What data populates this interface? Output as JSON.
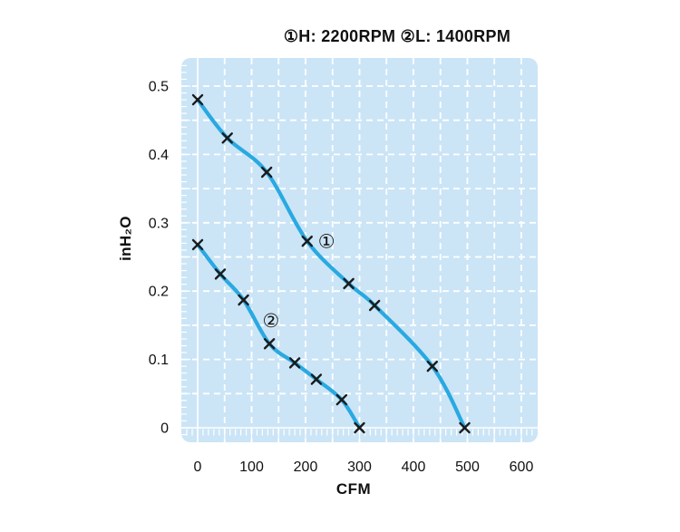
{
  "chart_data": {
    "type": "line",
    "title": "①H: 2200RPM ②L: 1400RPM",
    "xlabel": "CFM",
    "ylabel": "inH₂O",
    "xlim": [
      0,
      630
    ],
    "ylim": [
      -0.02,
      0.54
    ],
    "x_ticks": [
      0,
      100,
      200,
      300,
      400,
      500,
      600
    ],
    "y_ticks": [
      0,
      0.1,
      0.2,
      0.3,
      0.4,
      0.5
    ],
    "y_tick_labels": [
      "0",
      "0.1",
      "0.2",
      "0.3",
      "0.4",
      "0.5"
    ],
    "grid": {
      "shown": true,
      "x_step": 50,
      "y_step": 0.05,
      "style": "white-dashed",
      "minor_ruler_x_step": 10,
      "minor_ruler_y_step": 0.01
    },
    "legend_position": "title-line",
    "colors": {
      "curve": "#29a9e1",
      "plot_background": "#cbe5f6",
      "grid": "#ffffff",
      "marker": "#1b1b1b",
      "text": "#111111"
    },
    "series": [
      {
        "marker_label": "①",
        "name": "H: 2200RPM",
        "marker": "x",
        "label_position": [
          239,
          0.272
        ],
        "points": [
          [
            0,
            0.48
          ],
          [
            55,
            0.424
          ],
          [
            128,
            0.374
          ],
          [
            203,
            0.273
          ],
          [
            280,
            0.211
          ],
          [
            328,
            0.179
          ],
          [
            435,
            0.09
          ],
          [
            495,
            0
          ]
        ]
      },
      {
        "marker_label": "②",
        "name": "L: 1400RPM",
        "marker": "x",
        "label_position": [
          136,
          0.156
        ],
        "points": [
          [
            0,
            0.268
          ],
          [
            42,
            0.225
          ],
          [
            85,
            0.187
          ],
          [
            133,
            0.123
          ],
          [
            180,
            0.095
          ],
          [
            220,
            0.071
          ],
          [
            267,
            0.041
          ],
          [
            300,
            0
          ]
        ]
      }
    ]
  }
}
